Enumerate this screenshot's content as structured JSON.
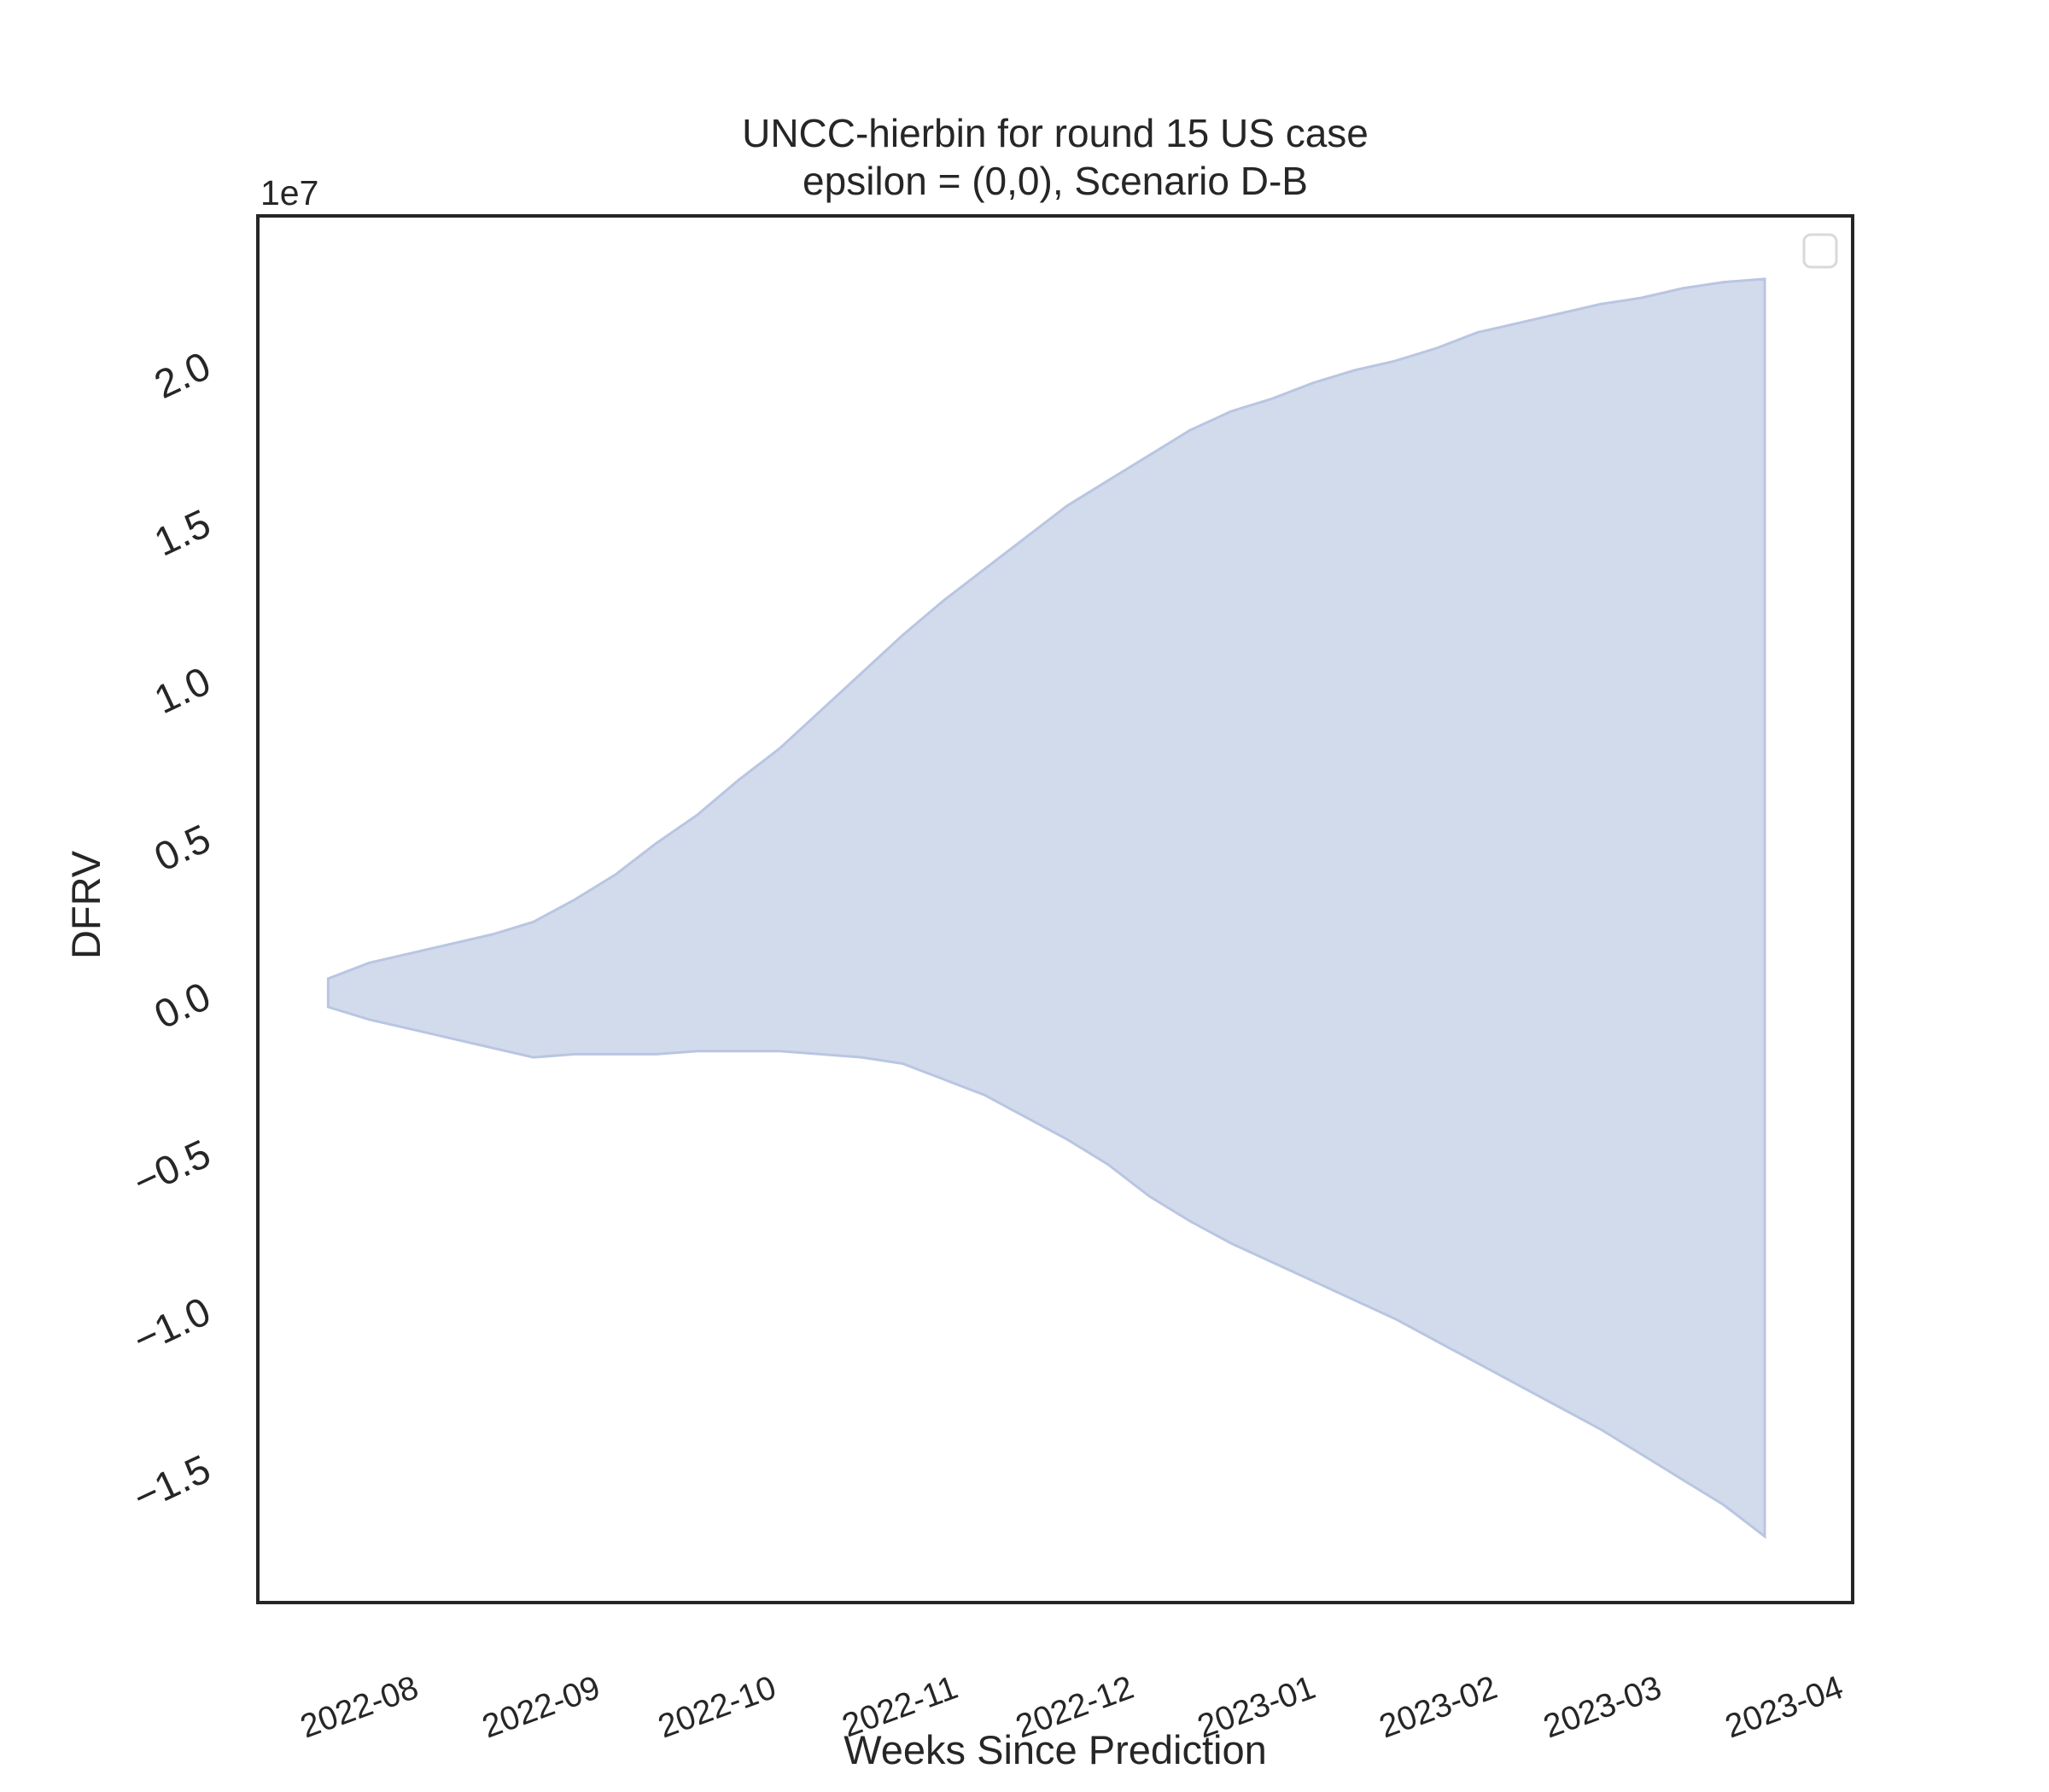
{
  "chart_data": {
    "type": "area",
    "title": "UNCC-hierbin for round 15 US case",
    "subtitle": "epsilon = (0,0), Scenario D-B",
    "xlabel": "Weeks Since Prediction",
    "ylabel": "DFRV",
    "y_offset_label": "1e7",
    "xlim": [
      "2022-07-06",
      "2023-04-04"
    ],
    "ylim": [
      -1.92,
      2.48
    ],
    "x_ticks": [
      "2022-08",
      "2022-09",
      "2022-10",
      "2022-11",
      "2022-12",
      "2023-01",
      "2023-02",
      "2023-03",
      "2023-04"
    ],
    "y_ticks": [
      {
        "value": 2.0,
        "label": "2.0"
      },
      {
        "value": 1.5,
        "label": "1.5"
      },
      {
        "value": 1.0,
        "label": "1.0"
      },
      {
        "value": 0.5,
        "label": "0.5"
      },
      {
        "value": 0.0,
        "label": "0.0"
      },
      {
        "value": -0.5,
        "label": "−0.5"
      },
      {
        "value": -1.0,
        "label": "−1.0"
      },
      {
        "value": -1.5,
        "label": "−1.5"
      }
    ],
    "legend": "upper right (empty)",
    "grid": false,
    "fill_color": "#d2dbec",
    "edge_color": "#b9c6e2",
    "series": [
      {
        "x": [
          "2022-07-18",
          "2022-07-25",
          "2022-08-01",
          "2022-08-08",
          "2022-08-15",
          "2022-08-22",
          "2022-08-29",
          "2022-09-05",
          "2022-09-12",
          "2022-09-19",
          "2022-09-26",
          "2022-10-03",
          "2022-10-10",
          "2022-10-17",
          "2022-10-24",
          "2022-10-31",
          "2022-11-07",
          "2022-11-14",
          "2022-11-21",
          "2022-11-28",
          "2022-12-05",
          "2022-12-12",
          "2022-12-19",
          "2022-12-26",
          "2023-01-02",
          "2023-01-09",
          "2023-01-16",
          "2023-01-23",
          "2023-01-30",
          "2023-02-06",
          "2023-02-13",
          "2023-02-20",
          "2023-02-27",
          "2023-03-06",
          "2023-03-13",
          "2023-03-20"
        ],
        "upper": [
          0.06,
          0.11,
          0.14,
          0.17,
          0.2,
          0.24,
          0.31,
          0.39,
          0.49,
          0.58,
          0.69,
          0.79,
          0.91,
          1.03,
          1.15,
          1.26,
          1.36,
          1.46,
          1.56,
          1.64,
          1.72,
          1.8,
          1.86,
          1.9,
          1.95,
          1.99,
          2.02,
          2.06,
          2.11,
          2.14,
          2.17,
          2.2,
          2.22,
          2.25,
          2.27,
          2.28
        ],
        "lower": [
          -0.03,
          -0.07,
          -0.1,
          -0.13,
          -0.16,
          -0.19,
          -0.18,
          -0.18,
          -0.18,
          -0.17,
          -0.17,
          -0.17,
          -0.18,
          -0.19,
          -0.21,
          -0.26,
          -0.31,
          -0.38,
          -0.45,
          -0.53,
          -0.63,
          -0.71,
          -0.78,
          -0.84,
          -0.9,
          -0.96,
          -1.02,
          -1.09,
          -1.16,
          -1.23,
          -1.3,
          -1.37,
          -1.45,
          -1.53,
          -1.61,
          -1.71
        ]
      }
    ]
  }
}
